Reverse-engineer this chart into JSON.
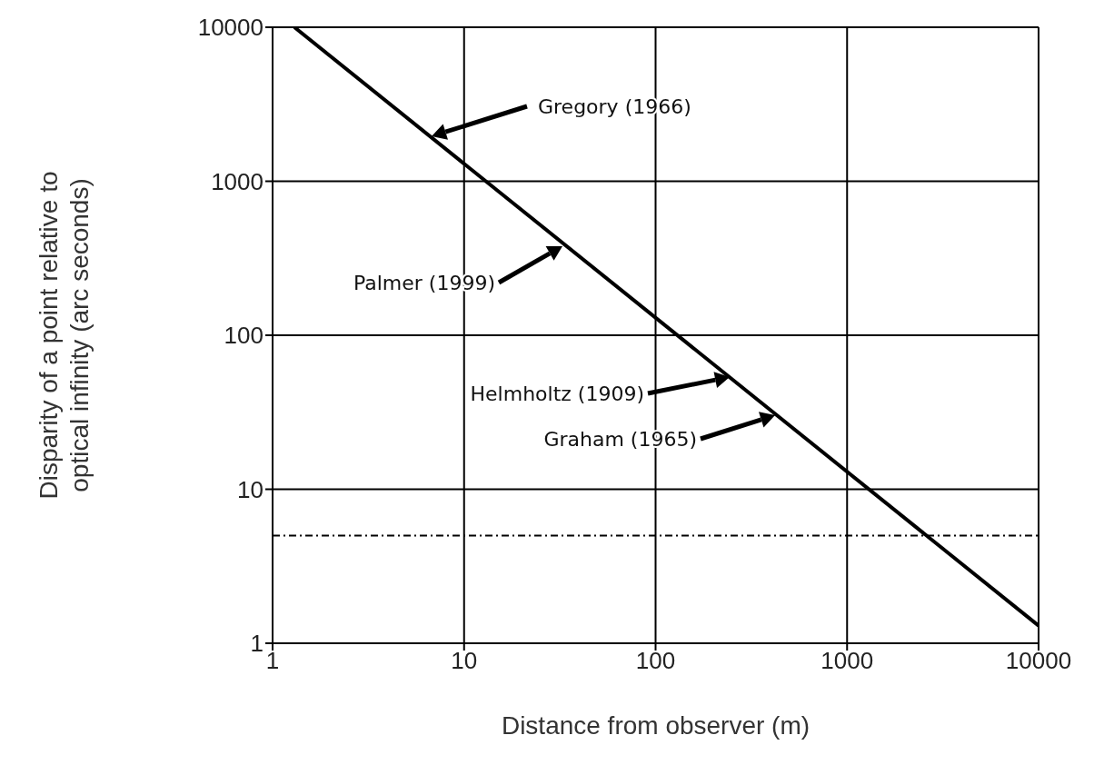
{
  "chart_data": {
    "type": "line",
    "xlabel": "Distance from observer (m)",
    "ylabel": "Disparity of a point relative to optical infinity (arc seconds)",
    "x": [
      1.3,
      10000
    ],
    "series": [
      {
        "color": "#000000",
        "values": [
          10000,
          1.3
        ]
      }
    ],
    "log": "xy",
    "xlim": [
      1,
      10000
    ],
    "ylim": [
      1,
      10000
    ],
    "xticks": [
      1,
      10,
      100,
      1000,
      10000
    ],
    "yticks": [
      1,
      10,
      100,
      1000,
      10000
    ],
    "grid": true,
    "ref_lines": [
      {
        "axis": "y",
        "value": 5,
        "color": "#000000",
        "line_style": "dashed"
      }
    ],
    "annotations": [
      "Gregory (1966)",
      "Palmer (1999)",
      "Helmholtz (1909)",
      "Graham (1965)"
    ]
  }
}
